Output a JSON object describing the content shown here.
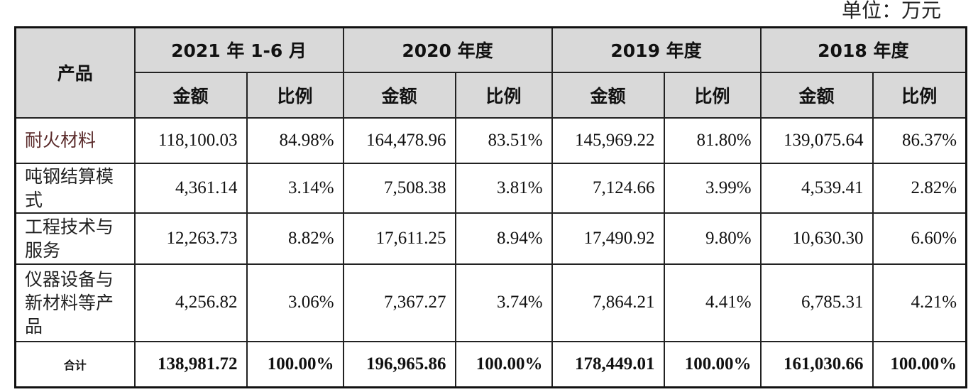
{
  "unit_label": "单位：万元",
  "header": {
    "product": "产品",
    "periods": [
      "2021 年 1-6 月",
      "2020 年度",
      "2019 年度",
      "2018 年度"
    ],
    "amount": "金额",
    "ratio": "比例"
  },
  "rows": [
    {
      "label": "耐火材料",
      "cells": [
        "118,100.03",
        "84.98%",
        "164,478.96",
        "83.51%",
        "145,969.22",
        "81.80%",
        "139,075.64",
        "86.37%"
      ]
    },
    {
      "label": "吨钢结算模式",
      "cells": [
        "4,361.14",
        "3.14%",
        "7,508.38",
        "3.81%",
        "7,124.66",
        "3.99%",
        "4,539.41",
        "2.82%"
      ]
    },
    {
      "label": "工程技术与服务",
      "cells": [
        "12,263.73",
        "8.82%",
        "17,611.25",
        "8.94%",
        "17,490.92",
        "9.80%",
        "10,630.30",
        "6.60%"
      ]
    },
    {
      "label": "仪器设备与新材料等产品",
      "cells": [
        "4,256.82",
        "3.06%",
        "7,367.27",
        "3.74%",
        "7,864.21",
        "4.41%",
        "6,785.31",
        "4.21%"
      ]
    }
  ],
  "total": {
    "label": "合计",
    "cells": [
      "138,981.72",
      "100.00%",
      "196,965.86",
      "100.00%",
      "178,449.01",
      "100.00%",
      "161,030.66",
      "100.00%"
    ]
  }
}
